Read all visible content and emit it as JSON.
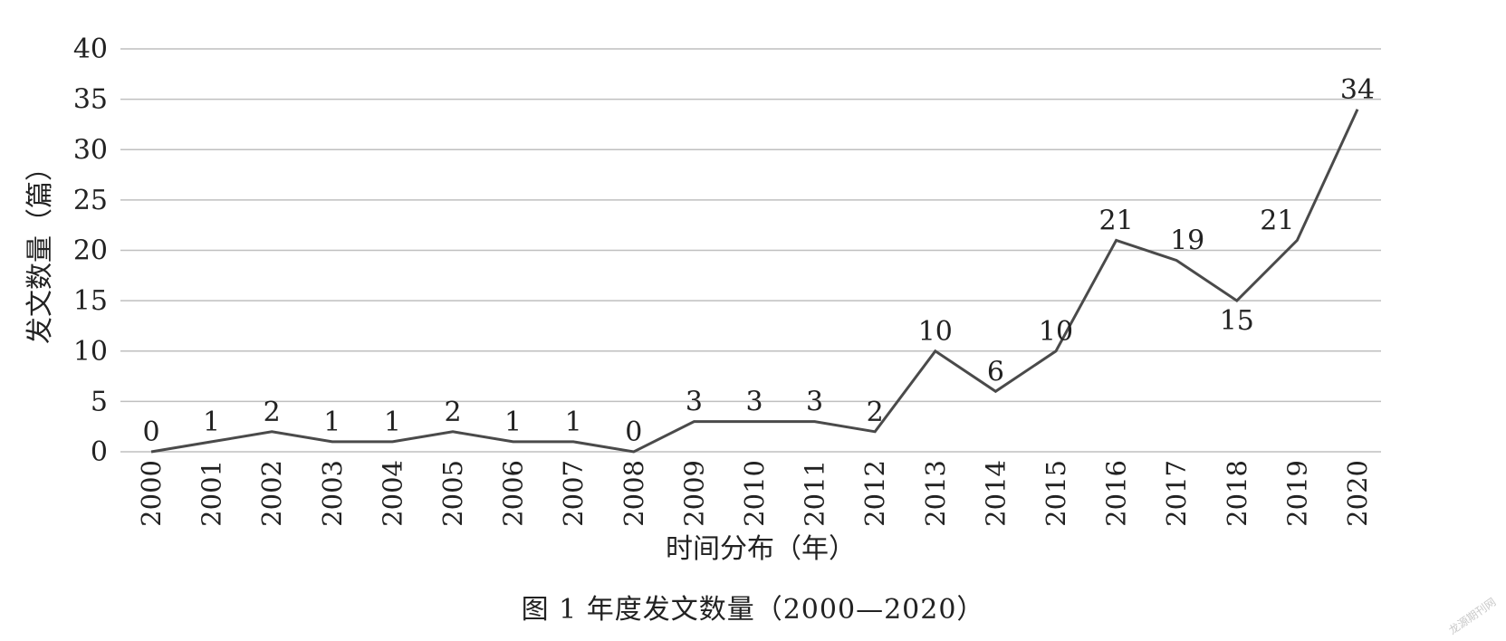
{
  "caption": "图 1 年度发文数量（2000—2020）",
  "watermark": "龙源期刊网",
  "chart_data": {
    "type": "line",
    "title": "",
    "xlabel": "时间分布（年）",
    "ylabel": "发文数量（篇）",
    "ylim": [
      0,
      40
    ],
    "yticks": [
      0,
      5,
      10,
      15,
      20,
      25,
      30,
      35,
      40
    ],
    "grid": true,
    "legend": "none",
    "categories": [
      "2000",
      "2001",
      "2002",
      "2003",
      "2004",
      "2005",
      "2006",
      "2007",
      "2008",
      "2009",
      "2010",
      "2011",
      "2012",
      "2013",
      "2014",
      "2015",
      "2016",
      "2017",
      "2018",
      "2019",
      "2020"
    ],
    "values": [
      0,
      1,
      2,
      1,
      1,
      2,
      1,
      1,
      0,
      3,
      3,
      3,
      2,
      10,
      6,
      10,
      21,
      19,
      15,
      21,
      34
    ],
    "data_labels": true,
    "line_color": "#4a4a4a",
    "grid_color": "#bfbfbf"
  }
}
